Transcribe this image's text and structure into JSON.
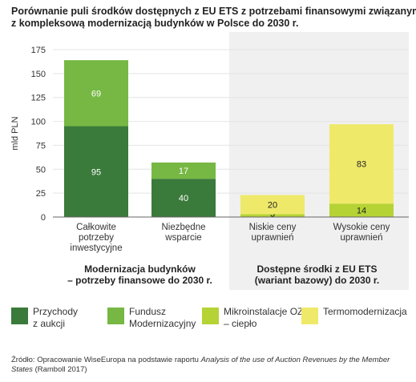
{
  "title": {
    "line1": "Porównanie puli środków dostępnych z EU ETS z potrzebami finansowymi związanymi",
    "line2": "z kompleksową modernizacją budynków w Polsce do 2030 r."
  },
  "colors": {
    "przychody": "#3a7a3a",
    "fundusz": "#76b843",
    "mikro": "#b5d334",
    "termo": "#efe96a",
    "shade": "#f0f0f0",
    "grid": "#e4e4e4",
    "axis": "#666666"
  },
  "chart_data": {
    "type": "bar",
    "stacked": true,
    "ylabel": "mld PLN",
    "ylim": [
      0,
      175
    ],
    "yticks": [
      0,
      25,
      50,
      75,
      100,
      125,
      150,
      175
    ],
    "grid": true,
    "categories": [
      "Całkowite\npotrzeby\ninwestycyjne",
      "Niezbędne\nwsparcie",
      "Niskie ceny\nuprawnień",
      "Wysokie ceny\nuprawnień"
    ],
    "series": [
      {
        "name": "Przychody z aukcji",
        "key": "przychody",
        "values": [
          95,
          40,
          0,
          0
        ],
        "labels": [
          "95",
          "40",
          "",
          ""
        ]
      },
      {
        "name": "Fundusz Modernizacyjny",
        "key": "fundusz",
        "values": [
          69,
          17,
          0,
          0
        ],
        "labels": [
          "69",
          "17",
          "",
          ""
        ]
      },
      {
        "name": "Mikroinstalacje OZE – ciepło",
        "key": "mikro",
        "values": [
          0,
          0,
          3,
          14
        ],
        "labels": [
          "",
          "",
          "3",
          "14"
        ]
      },
      {
        "name": "Termomodernizacja",
        "key": "termo",
        "values": [
          0,
          0,
          20,
          83
        ],
        "labels": [
          "",
          "",
          "20",
          "83"
        ]
      }
    ],
    "groups": [
      {
        "label": "Modernizacja budynków\n– potrzeby finansowe do 2030 r.",
        "categories": [
          0,
          1
        ],
        "shaded": false
      },
      {
        "label": "Dostępne środki z EU ETS\n(wariant bazowy) do 2030 r.",
        "categories": [
          2,
          3
        ],
        "shaded": true
      }
    ],
    "legend_position": "bottom"
  },
  "legend": [
    {
      "key": "przychody",
      "label": "Przychody\nz aukcji"
    },
    {
      "key": "fundusz",
      "label": "Fundusz\nModernizacyjny"
    },
    {
      "key": "mikro",
      "label": "Mikroinstalacje OZE\n– ciepło"
    },
    {
      "key": "termo",
      "label": "Termomodernizacja"
    }
  ],
  "source": {
    "prefix": "Źródło: Opracowanie WiseEuropa na podstawie raportu ",
    "italic": "Analysis of the use of Auction Revenues by the Member States",
    "suffix": " (Ramboll 2017)"
  }
}
